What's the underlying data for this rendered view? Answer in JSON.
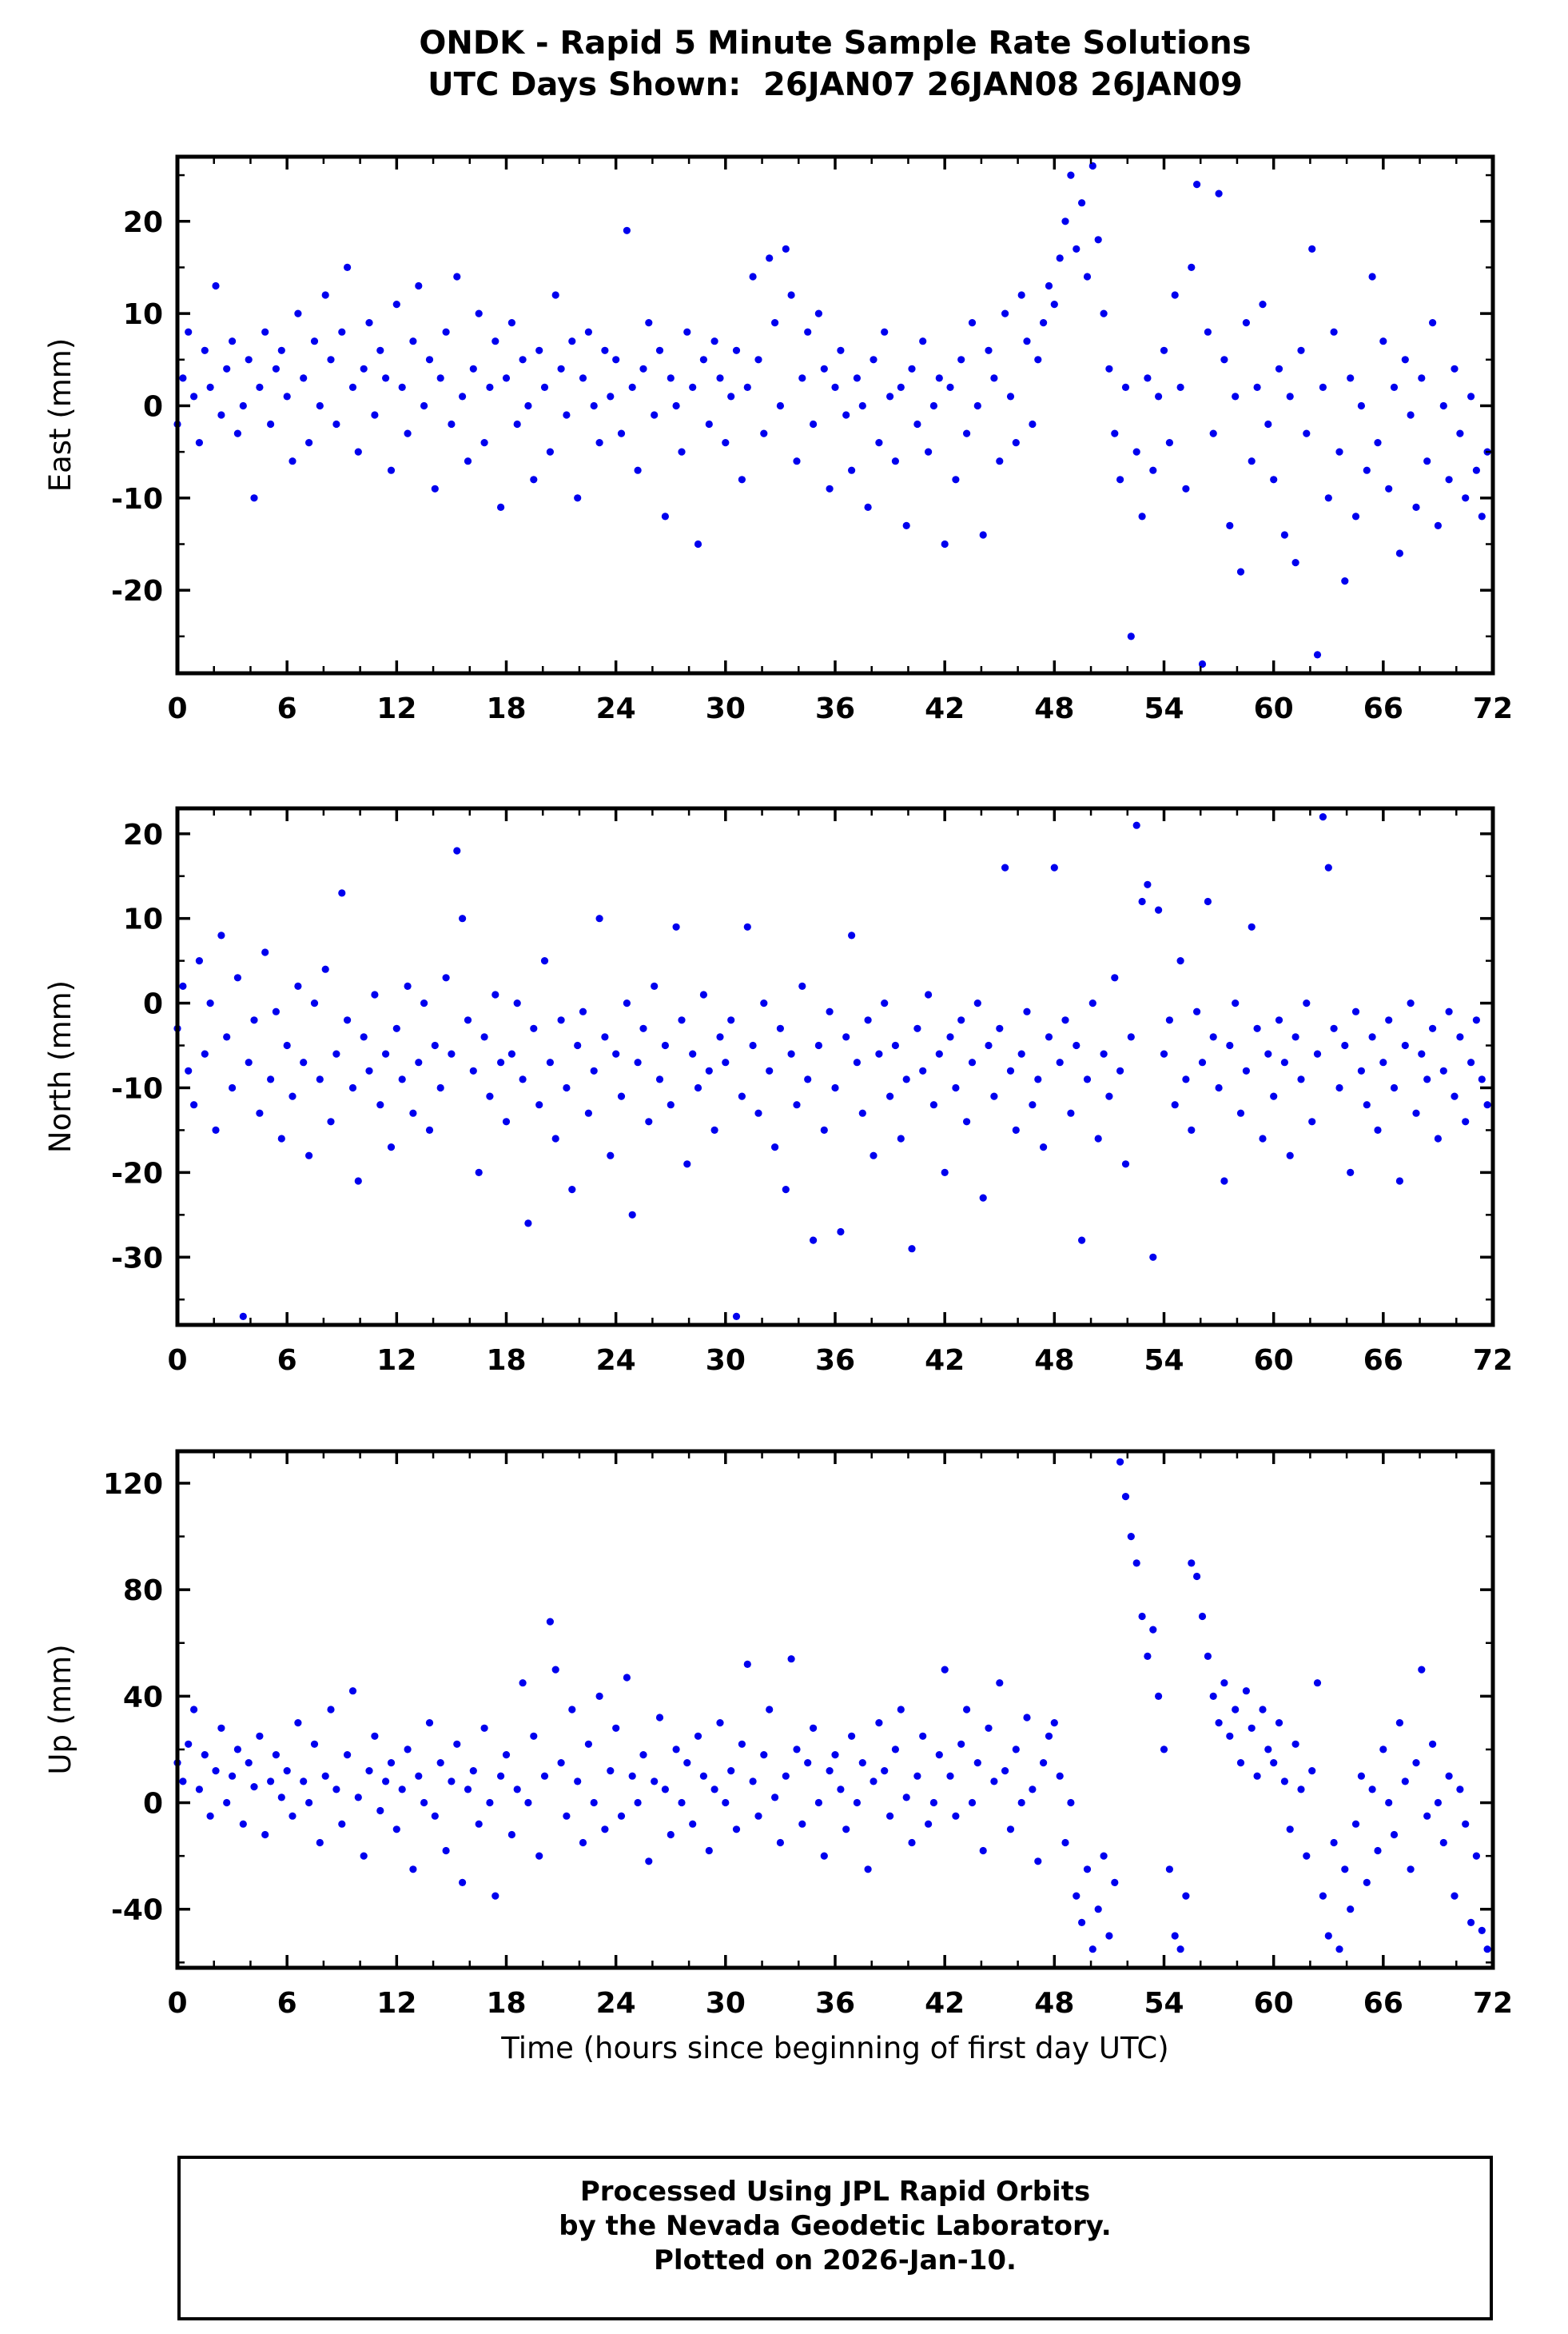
{
  "title": {
    "line1": "ONDK - Rapid 5 Minute Sample Rate Solutions",
    "line2": "UTC Days Shown:  26JAN07 26JAN08 26JAN09"
  },
  "xlabel": "Time (hours since beginning of first day UTC)",
  "footer": {
    "line1": "Processed Using JPL Rapid Orbits",
    "line2": "by the Nevada Geodetic Laboratory.",
    "line3": "Plotted on 2026-Jan-10."
  },
  "colors": {
    "dot": "#0000ee",
    "frame": "#000000"
  },
  "chart_data": [
    {
      "type": "scatter",
      "name": "east",
      "ylabel": "East (mm)",
      "xlim": [
        0,
        72
      ],
      "ylim": [
        -29,
        27
      ],
      "xticks": [
        0,
        6,
        12,
        18,
        24,
        30,
        36,
        42,
        48,
        54,
        60,
        66,
        72
      ],
      "yticks": [
        -20,
        -10,
        0,
        10,
        20
      ],
      "x_start": 0,
      "x_step": 0.3,
      "y": [
        -2,
        3,
        8,
        1,
        -4,
        6,
        2,
        13,
        -1,
        4,
        7,
        -3,
        0,
        5,
        -10,
        2,
        8,
        -2,
        4,
        6,
        1,
        -6,
        10,
        3,
        -4,
        7,
        0,
        12,
        5,
        -2,
        8,
        15,
        2,
        -5,
        4,
        9,
        -1,
        6,
        3,
        -7,
        11,
        2,
        -3,
        7,
        13,
        0,
        5,
        -9,
        3,
        8,
        -2,
        14,
        1,
        -6,
        4,
        10,
        -4,
        2,
        7,
        -11,
        3,
        9,
        -2,
        5,
        0,
        -8,
        6,
        2,
        -5,
        12,
        4,
        -1,
        7,
        -10,
        3,
        8,
        0,
        -4,
        6,
        1,
        5,
        -3,
        19,
        2,
        -7,
        4,
        9,
        -1,
        6,
        -12,
        3,
        0,
        -5,
        8,
        2,
        -15,
        5,
        -2,
        7,
        3,
        -4,
        1,
        6,
        -8,
        2,
        14,
        5,
        -3,
        16,
        9,
        0,
        17,
        12,
        -6,
        3,
        8,
        -2,
        10,
        4,
        -9,
        2,
        6,
        -1,
        -7,
        3,
        0,
        -11,
        5,
        -4,
        8,
        1,
        -6,
        2,
        -13,
        4,
        -2,
        7,
        -5,
        0,
        3,
        -15,
        2,
        -8,
        5,
        -3,
        9,
        0,
        -14,
        6,
        3,
        -6,
        10,
        1,
        -4,
        12,
        7,
        -2,
        5,
        9,
        13,
        11,
        16,
        20,
        25,
        17,
        22,
        14,
        26,
        18,
        10,
        4,
        -3,
        -8,
        2,
        -25,
        -5,
        -12,
        3,
        -7,
        1,
        6,
        -4,
        12,
        2,
        -9,
        15,
        24,
        -28,
        8,
        -3,
        23,
        5,
        -13,
        1,
        -18,
        9,
        -6,
        2,
        11,
        -2,
        -8,
        4,
        -14,
        1,
        -17,
        6,
        -3,
        17,
        -27,
        2,
        -10,
        8,
        -5,
        -19,
        3,
        -12,
        0,
        -7,
        14,
        -4,
        7,
        -9,
        2,
        -16,
        5,
        -1,
        -11,
        3,
        -6,
        9,
        -13,
        0,
        -8,
        4,
        -3,
        -10,
        1,
        -7,
        -12,
        -5
      ]
    },
    {
      "type": "scatter",
      "name": "north",
      "ylabel": "North (mm)",
      "xlim": [
        0,
        72
      ],
      "ylim": [
        -38,
        23
      ],
      "xticks": [
        0,
        6,
        12,
        18,
        24,
        30,
        36,
        42,
        48,
        54,
        60,
        66,
        72
      ],
      "yticks": [
        -30,
        -20,
        -10,
        0,
        10,
        20
      ],
      "x_start": 0,
      "x_step": 0.3,
      "y": [
        -3,
        2,
        -8,
        -12,
        5,
        -6,
        0,
        -15,
        8,
        -4,
        -10,
        3,
        -37,
        -7,
        -2,
        -13,
        6,
        -9,
        -1,
        -16,
        -5,
        -11,
        2,
        -7,
        -18,
        0,
        -9,
        4,
        -14,
        -6,
        13,
        -2,
        -10,
        -21,
        -4,
        -8,
        1,
        -12,
        -6,
        -17,
        -3,
        -9,
        2,
        -13,
        -7,
        0,
        -15,
        -5,
        -10,
        3,
        -6,
        18,
        10,
        -2,
        -8,
        -20,
        -4,
        -11,
        1,
        -7,
        -14,
        -6,
        0,
        -9,
        -26,
        -3,
        -12,
        5,
        -7,
        -16,
        -2,
        -10,
        -22,
        -5,
        -1,
        -13,
        -8,
        10,
        -4,
        -18,
        -6,
        -11,
        0,
        -25,
        -7,
        -3,
        -14,
        2,
        -9,
        -5,
        -12,
        9,
        -2,
        -19,
        -6,
        -10,
        1,
        -8,
        -15,
        -4,
        -7,
        -2,
        -37,
        -11,
        9,
        -5,
        -13,
        0,
        -8,
        -17,
        -3,
        -22,
        -6,
        -12,
        2,
        -9,
        -28,
        -5,
        -15,
        -1,
        -10,
        -27,
        -4,
        8,
        -7,
        -13,
        -2,
        -18,
        -6,
        0,
        -11,
        -5,
        -16,
        -9,
        -29,
        -3,
        -8,
        1,
        -12,
        -6,
        -20,
        -4,
        -10,
        -2,
        -14,
        -7,
        0,
        -23,
        -5,
        -11,
        -3,
        16,
        -8,
        -15,
        -6,
        -1,
        -12,
        -9,
        -17,
        -4,
        16,
        -7,
        -2,
        -13,
        -5,
        -28,
        -9,
        0,
        -16,
        -6,
        -11,
        3,
        -8,
        -19,
        -4,
        21,
        12,
        14,
        -30,
        11,
        -6,
        -2,
        -12,
        5,
        -9,
        -15,
        -1,
        -7,
        12,
        -4,
        -10,
        -21,
        -5,
        0,
        -13,
        -8,
        9,
        -3,
        -16,
        -6,
        -11,
        -2,
        -7,
        -18,
        -4,
        -9,
        0,
        -14,
        -6,
        22,
        16,
        -3,
        -10,
        -5,
        -20,
        -1,
        -8,
        -12,
        -4,
        -15,
        -7,
        -2,
        -10,
        -21,
        -5,
        0,
        -13,
        -6,
        -9,
        -3,
        -16,
        -8,
        -1,
        -11,
        -4,
        -14,
        -7,
        -2,
        -9,
        -12
      ]
    },
    {
      "type": "scatter",
      "name": "up",
      "ylabel": "Up (mm)",
      "xlim": [
        0,
        72
      ],
      "ylim": [
        -62,
        132
      ],
      "xticks": [
        0,
        6,
        12,
        18,
        24,
        30,
        36,
        42,
        48,
        54,
        60,
        66,
        72
      ],
      "yticks": [
        -40,
        0,
        40,
        80,
        120
      ],
      "x_start": 0,
      "x_step": 0.3,
      "y": [
        15,
        8,
        22,
        35,
        5,
        18,
        -5,
        12,
        28,
        0,
        10,
        20,
        -8,
        15,
        6,
        25,
        -12,
        8,
        18,
        2,
        12,
        -5,
        30,
        8,
        0,
        22,
        -15,
        10,
        35,
        5,
        -8,
        18,
        42,
        2,
        -20,
        12,
        25,
        -3,
        8,
        15,
        -10,
        5,
        20,
        -25,
        10,
        0,
        30,
        -5,
        15,
        -18,
        8,
        22,
        -30,
        5,
        12,
        -8,
        28,
        0,
        -35,
        10,
        18,
        -12,
        5,
        45,
        0,
        25,
        -20,
        10,
        68,
        50,
        15,
        -5,
        35,
        8,
        -15,
        22,
        0,
        40,
        -10,
        12,
        28,
        -5,
        47,
        10,
        0,
        18,
        -22,
        8,
        32,
        5,
        -12,
        20,
        0,
        15,
        -8,
        25,
        10,
        -18,
        5,
        30,
        0,
        12,
        -10,
        22,
        52,
        8,
        -5,
        18,
        35,
        2,
        -15,
        10,
        54,
        20,
        -8,
        15,
        28,
        0,
        -20,
        12,
        18,
        5,
        -10,
        25,
        0,
        15,
        -25,
        8,
        30,
        12,
        -5,
        20,
        35,
        2,
        -15,
        10,
        25,
        -8,
        0,
        18,
        50,
        10,
        -5,
        22,
        35,
        0,
        15,
        -18,
        28,
        8,
        45,
        12,
        -10,
        20,
        0,
        32,
        5,
        -22,
        15,
        25,
        30,
        10,
        -15,
        0,
        -35,
        -45,
        -25,
        -55,
        -40,
        -20,
        -50,
        -30,
        128,
        115,
        100,
        90,
        70,
        55,
        65,
        40,
        20,
        -25,
        -50,
        -55,
        -35,
        90,
        85,
        70,
        55,
        40,
        30,
        45,
        25,
        35,
        15,
        42,
        28,
        10,
        35,
        20,
        15,
        30,
        8,
        -10,
        22,
        5,
        -20,
        12,
        45,
        -35,
        -50,
        -15,
        -55,
        -25,
        -40,
        -8,
        10,
        -30,
        5,
        -18,
        20,
        0,
        -12,
        30,
        8,
        -25,
        15,
        50,
        -5,
        22,
        0,
        -15,
        10,
        -35,
        5,
        -8,
        -45,
        -20,
        -48,
        -55
      ]
    }
  ]
}
